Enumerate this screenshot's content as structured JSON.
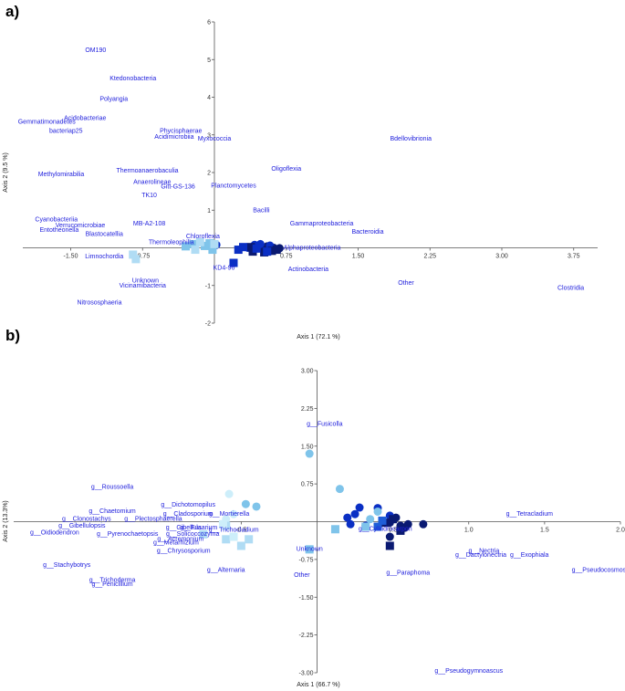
{
  "colors": {
    "label_text": "#2222dd",
    "axis": "#555555",
    "navy": "#0a1a72",
    "dark_blue": "#0a2fc4",
    "mid_blue": "#1f5ed8",
    "sky": "#7fc4ea",
    "light_sky": "#b0dcf4",
    "pale": "#cdeefa"
  },
  "chart_data": [
    {
      "type": "scatter",
      "panel_label": "a)",
      "xlabel": "Axis 1 (72.1 %)",
      "ylabel": "Axis 2 (9.5 %)",
      "xlim": [
        -2.0,
        4.0
      ],
      "ylim": [
        -2,
        6
      ],
      "x_ticks": [
        "-1.50",
        "-0.75",
        "0.75",
        "1.50",
        "2.25",
        "3.00",
        "3.75"
      ],
      "y_ticks": [
        "-2",
        "-1",
        "1",
        "2",
        "3",
        "4",
        "5",
        "6"
      ],
      "labels": [
        {
          "text": "OM190",
          "x": -1.24,
          "y": 5.2
        },
        {
          "text": "Ktedonobacteria",
          "x": -0.85,
          "y": 4.45
        },
        {
          "text": "Polyangia",
          "x": -1.05,
          "y": 3.9
        },
        {
          "text": "Acidobacteriae",
          "x": -1.35,
          "y": 3.4
        },
        {
          "text": "Gemmatimonadetes",
          "x": -1.75,
          "y": 3.3
        },
        {
          "text": "bacteriap25",
          "x": -1.55,
          "y": 3.05
        },
        {
          "text": "Phycisphaerae",
          "x": -0.35,
          "y": 3.05
        },
        {
          "text": "Acidimicrobiia",
          "x": -0.42,
          "y": 2.9
        },
        {
          "text": "Myxococcia",
          "x": 0.0,
          "y": 2.85
        },
        {
          "text": "Bdellovibrionia",
          "x": 2.05,
          "y": 2.85
        },
        {
          "text": "Methylomirabilia",
          "x": -1.6,
          "y": 1.9
        },
        {
          "text": "Thermoanaerobaculia",
          "x": -0.7,
          "y": 2.0
        },
        {
          "text": "Oligoflexia",
          "x": 0.75,
          "y": 2.05
        },
        {
          "text": "Anaerolineae",
          "x": -0.65,
          "y": 1.7
        },
        {
          "text": "Gitt-GS-136",
          "x": -0.38,
          "y": 1.58
        },
        {
          "text": "Planctomycetes",
          "x": 0.2,
          "y": 1.6
        },
        {
          "text": "TK10",
          "x": -0.68,
          "y": 1.35
        },
        {
          "text": "Bacilli",
          "x": 0.49,
          "y": 0.95
        },
        {
          "text": "Cyanobacteriia",
          "x": -1.65,
          "y": 0.7
        },
        {
          "text": "MB-A2-108",
          "x": -0.68,
          "y": 0.6
        },
        {
          "text": "Verrucomicrobiae",
          "x": -1.4,
          "y": 0.55
        },
        {
          "text": "Gammaproteobacteria",
          "x": 1.12,
          "y": 0.6
        },
        {
          "text": "Entotheonella",
          "x": -1.62,
          "y": 0.42
        },
        {
          "text": "Blastocatellia",
          "x": -1.15,
          "y": 0.32
        },
        {
          "text": "Chloroflexia",
          "x": -0.12,
          "y": 0.25
        },
        {
          "text": "Bacteroidia",
          "x": 1.6,
          "y": 0.38
        },
        {
          "text": "Thermoleophilia",
          "x": -0.45,
          "y": 0.1
        },
        {
          "text": "Alphaproteobacteria",
          "x": 1.02,
          "y": -0.05
        },
        {
          "text": "Limnochordia",
          "x": -1.15,
          "y": -0.28
        },
        {
          "text": "KD4-96",
          "x": 0.1,
          "y": -0.58
        },
        {
          "text": "Actinobacteria",
          "x": 0.98,
          "y": -0.62
        },
        {
          "text": "Unknown",
          "x": -0.72,
          "y": -0.92
        },
        {
          "text": "Other",
          "x": 2.0,
          "y": -0.98
        },
        {
          "text": "Vicinamibacteria",
          "x": -0.75,
          "y": -1.05
        },
        {
          "text": "Clostridia",
          "x": 3.72,
          "y": -1.12
        },
        {
          "text": "Nitrososphaeria",
          "x": -1.2,
          "y": -1.5
        }
      ],
      "series": [
        {
          "marker": "circle",
          "color": "#0a1a72",
          "points": [
            [
              0.45,
              0.05
            ],
            [
              0.5,
              0.02
            ],
            [
              0.55,
              0.04
            ],
            [
              0.62,
              0.0
            ],
            [
              0.68,
              -0.01
            ]
          ]
        },
        {
          "marker": "circle",
          "color": "#0a2fc4",
          "points": [
            [
              0.35,
              0.0
            ],
            [
              0.42,
              0.08
            ],
            [
              0.48,
              0.1
            ],
            [
              0.58,
              0.06
            ],
            [
              0.02,
              0.08
            ]
          ]
        },
        {
          "marker": "square",
          "color": "#0a1a72",
          "points": [
            [
              0.4,
              -0.1
            ],
            [
              0.52,
              -0.12
            ],
            [
              0.6,
              -0.08
            ],
            [
              0.38,
              0.02
            ],
            [
              0.65,
              -0.05
            ]
          ]
        },
        {
          "marker": "square",
          "color": "#0a2fc4",
          "points": [
            [
              0.25,
              -0.05
            ],
            [
              0.3,
              0.02
            ],
            [
              0.2,
              -0.4
            ],
            [
              0.44,
              -0.02
            ],
            [
              0.55,
              -0.1
            ]
          ]
        },
        {
          "marker": "square",
          "color": "#7fc4ea",
          "points": [
            [
              -0.05,
              0.12
            ],
            [
              -0.1,
              0.05
            ],
            [
              -0.22,
              0.1
            ],
            [
              -0.3,
              0.04
            ],
            [
              -0.02,
              -0.05
            ]
          ]
        },
        {
          "marker": "square",
          "color": "#b0dcf4",
          "points": [
            [
              -0.85,
              -0.18
            ],
            [
              -0.82,
              -0.3
            ],
            [
              -0.15,
              0.15
            ],
            [
              0.0,
              0.1
            ],
            [
              -0.2,
              -0.05
            ]
          ]
        }
      ]
    },
    {
      "type": "scatter",
      "panel_label": "b)",
      "xlabel": "Axis 1 (66.7 %)",
      "ylabel": "Axis 2 (13.3%)",
      "xlim": [
        -2.0,
        2.0
      ],
      "ylim": [
        -3.0,
        3.0
      ],
      "x_ticks": [
        "-0.5",
        "0.5",
        "1.0",
        "1.5",
        "2.0"
      ],
      "y_ticks": [
        "-3.00",
        "-2.25",
        "-1.50",
        "-0.75",
        "0.75",
        "1.50",
        "2.25",
        "3.00"
      ],
      "labels": [
        {
          "text": "g__Fusicolla",
          "x": 0.05,
          "y": 1.9
        },
        {
          "text": "g__Roussoella",
          "x": -1.35,
          "y": 0.65
        },
        {
          "text": "g__Dichotomopilus",
          "x": -0.85,
          "y": 0.3
        },
        {
          "text": "g__Chaetomium",
          "x": -1.35,
          "y": 0.17
        },
        {
          "text": "g__Cladosporium",
          "x": -0.85,
          "y": 0.12
        },
        {
          "text": "g__Mortierella",
          "x": -0.58,
          "y": 0.12
        },
        {
          "text": "g__Tetracladium",
          "x": 1.4,
          "y": 0.12
        },
        {
          "text": "g__Clonostachys",
          "x": -1.52,
          "y": 0.02
        },
        {
          "text": "g__Plectosphaerella",
          "x": -1.08,
          "y": 0.02
        },
        {
          "text": "g__Gibellulopsis",
          "x": -1.55,
          "y": -0.12
        },
        {
          "text": "g__Gibellula",
          "x": -0.88,
          "y": -0.15
        },
        {
          "text": "g__Fusarium",
          "x": -0.78,
          "y": -0.15
        },
        {
          "text": "g__Trichocladium",
          "x": -0.55,
          "y": -0.2
        },
        {
          "text": "g__Cylindrocarpon",
          "x": 0.45,
          "y": -0.18
        },
        {
          "text": "g__Oidiodendron",
          "x": -1.73,
          "y": -0.25
        },
        {
          "text": "g__Pyrenochaetopsis",
          "x": -1.25,
          "y": -0.28
        },
        {
          "text": "g__Solicoccozyma",
          "x": -0.82,
          "y": -0.28
        },
        {
          "text": "g__Acremonium",
          "x": -0.9,
          "y": -0.38
        },
        {
          "text": "g__Metarhizium",
          "x": -0.93,
          "y": -0.45
        },
        {
          "text": "g__Chrysosporium",
          "x": -0.88,
          "y": -0.62
        },
        {
          "text": "Unknown",
          "x": -0.05,
          "y": -0.58
        },
        {
          "text": "g__Nectria",
          "x": 1.1,
          "y": -0.62
        },
        {
          "text": "g__Dactylonectria",
          "x": 1.08,
          "y": -0.7
        },
        {
          "text": "g__Exophiala",
          "x": 1.4,
          "y": -0.7
        },
        {
          "text": "g__Stachybotrys",
          "x": -1.65,
          "y": -0.9
        },
        {
          "text": "g__Alternaria",
          "x": -0.6,
          "y": -1.0
        },
        {
          "text": "g__Pseudocosmospora",
          "x": 1.9,
          "y": -1.0
        },
        {
          "text": "g__Paraphoma",
          "x": 0.6,
          "y": -1.05
        },
        {
          "text": "Other",
          "x": -0.1,
          "y": -1.1
        },
        {
          "text": "g__Trichoderma",
          "x": -1.35,
          "y": -1.2
        },
        {
          "text": "g__Penicillium",
          "x": -1.35,
          "y": -1.28
        },
        {
          "text": "g__Pseudogymnoascus",
          "x": 1.0,
          "y": -3.0
        }
      ],
      "series": [
        {
          "marker": "circle",
          "color": "#0a1a72",
          "points": [
            [
              0.55,
              -0.08
            ],
            [
              0.6,
              -0.05
            ],
            [
              0.7,
              -0.05
            ],
            [
              0.48,
              -0.02
            ],
            [
              0.52,
              0.08
            ],
            [
              0.58,
              -0.12
            ],
            [
              0.48,
              -0.3
            ]
          ]
        },
        {
          "marker": "circle",
          "color": "#0a2fc4",
          "points": [
            [
              0.25,
              0.15
            ],
            [
              0.28,
              0.28
            ],
            [
              0.4,
              0.27
            ],
            [
              0.32,
              -0.08
            ],
            [
              0.22,
              -0.05
            ],
            [
              0.48,
              0.12
            ],
            [
              0.2,
              0.08
            ]
          ]
        },
        {
          "marker": "square",
          "color": "#0a1a72",
          "points": [
            [
              0.5,
              0.05
            ],
            [
              0.55,
              -0.18
            ],
            [
              0.45,
              -0.02
            ],
            [
              0.48,
              -0.48
            ]
          ]
        },
        {
          "marker": "square",
          "color": "#1f5ed8",
          "points": [
            [
              0.4,
              -0.1
            ],
            [
              0.43,
              0.02
            ]
          ]
        },
        {
          "marker": "circle",
          "color": "#7fc4ea",
          "points": [
            [
              0.15,
              0.65
            ],
            [
              0.4,
              0.2
            ],
            [
              0.35,
              0.05
            ],
            [
              -0.05,
              1.35
            ],
            [
              -0.47,
              0.35
            ],
            [
              -0.4,
              0.3
            ]
          ]
        },
        {
          "marker": "circle",
          "color": "#cdeefa",
          "points": [
            [
              -0.58,
              0.55
            ],
            [
              -0.55,
              0.15
            ],
            [
              -0.6,
              0.05
            ]
          ]
        },
        {
          "marker": "square",
          "color": "#7fc4ea",
          "points": [
            [
              0.32,
              -0.1
            ],
            [
              0.12,
              -0.15
            ],
            [
              -0.05,
              -0.55
            ]
          ]
        },
        {
          "marker": "square",
          "color": "#b0dcf4",
          "points": [
            [
              -0.6,
              -0.08
            ],
            [
              -0.75,
              -0.25
            ],
            [
              -0.6,
              -0.35
            ],
            [
              -0.45,
              -0.35
            ],
            [
              -0.5,
              -0.48
            ]
          ]
        },
        {
          "marker": "square",
          "color": "#cdeefa",
          "points": [
            [
              -0.62,
              -0.05
            ],
            [
              -0.55,
              -0.3
            ]
          ]
        }
      ]
    }
  ]
}
